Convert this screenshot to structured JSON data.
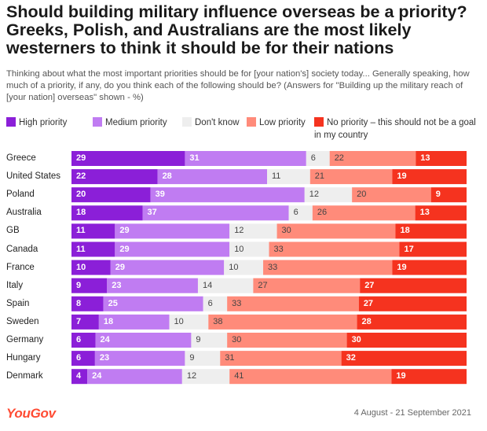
{
  "header": {
    "title": "Should building military influence overseas be a priority? Greeks, Polish, and Australians are the most likely westerners to think it should be for their nations",
    "subtitle": "Thinking about what the most important priorities should be for [your nation's] society today... Generally speaking, how much of a priority, if any, do you think each of the following should be? (Answers for \"Building up the military reach of [your nation] overseas\" shown - %)"
  },
  "footer": {
    "brand": "YouGov",
    "date_range": "4 August - 21 September 2021"
  },
  "chart_data": {
    "type": "bar",
    "orientation": "horizontal",
    "stacked": true,
    "legend_position": "top",
    "categories": [
      "Greece",
      "United States",
      "Poland",
      "Australia",
      "GB",
      "Canada",
      "France",
      "Italy",
      "Spain",
      "Sweden",
      "Germany",
      "Hungary",
      "Denmark"
    ],
    "series": [
      {
        "name": "High priority",
        "color": "#8b1fd8",
        "values": [
          29,
          22,
          20,
          18,
          11,
          11,
          10,
          9,
          8,
          7,
          6,
          6,
          4
        ]
      },
      {
        "name": "Medium priority",
        "color": "#c07cf2",
        "values": [
          31,
          28,
          39,
          37,
          29,
          29,
          29,
          23,
          25,
          18,
          24,
          23,
          24
        ]
      },
      {
        "name": "Don't know",
        "color": "#eeeeee",
        "values": [
          6,
          11,
          12,
          6,
          12,
          10,
          10,
          14,
          6,
          10,
          9,
          9,
          12
        ]
      },
      {
        "name": "Low priority",
        "color": "#ff8b7a",
        "values": [
          22,
          21,
          20,
          26,
          30,
          33,
          33,
          27,
          33,
          38,
          30,
          31,
          41
        ]
      },
      {
        "name": "No priority – this should not be a goal in my country",
        "color": "#f5331f",
        "values": [
          13,
          19,
          9,
          13,
          18,
          17,
          19,
          27,
          27,
          28,
          30,
          32,
          19
        ]
      }
    ]
  }
}
